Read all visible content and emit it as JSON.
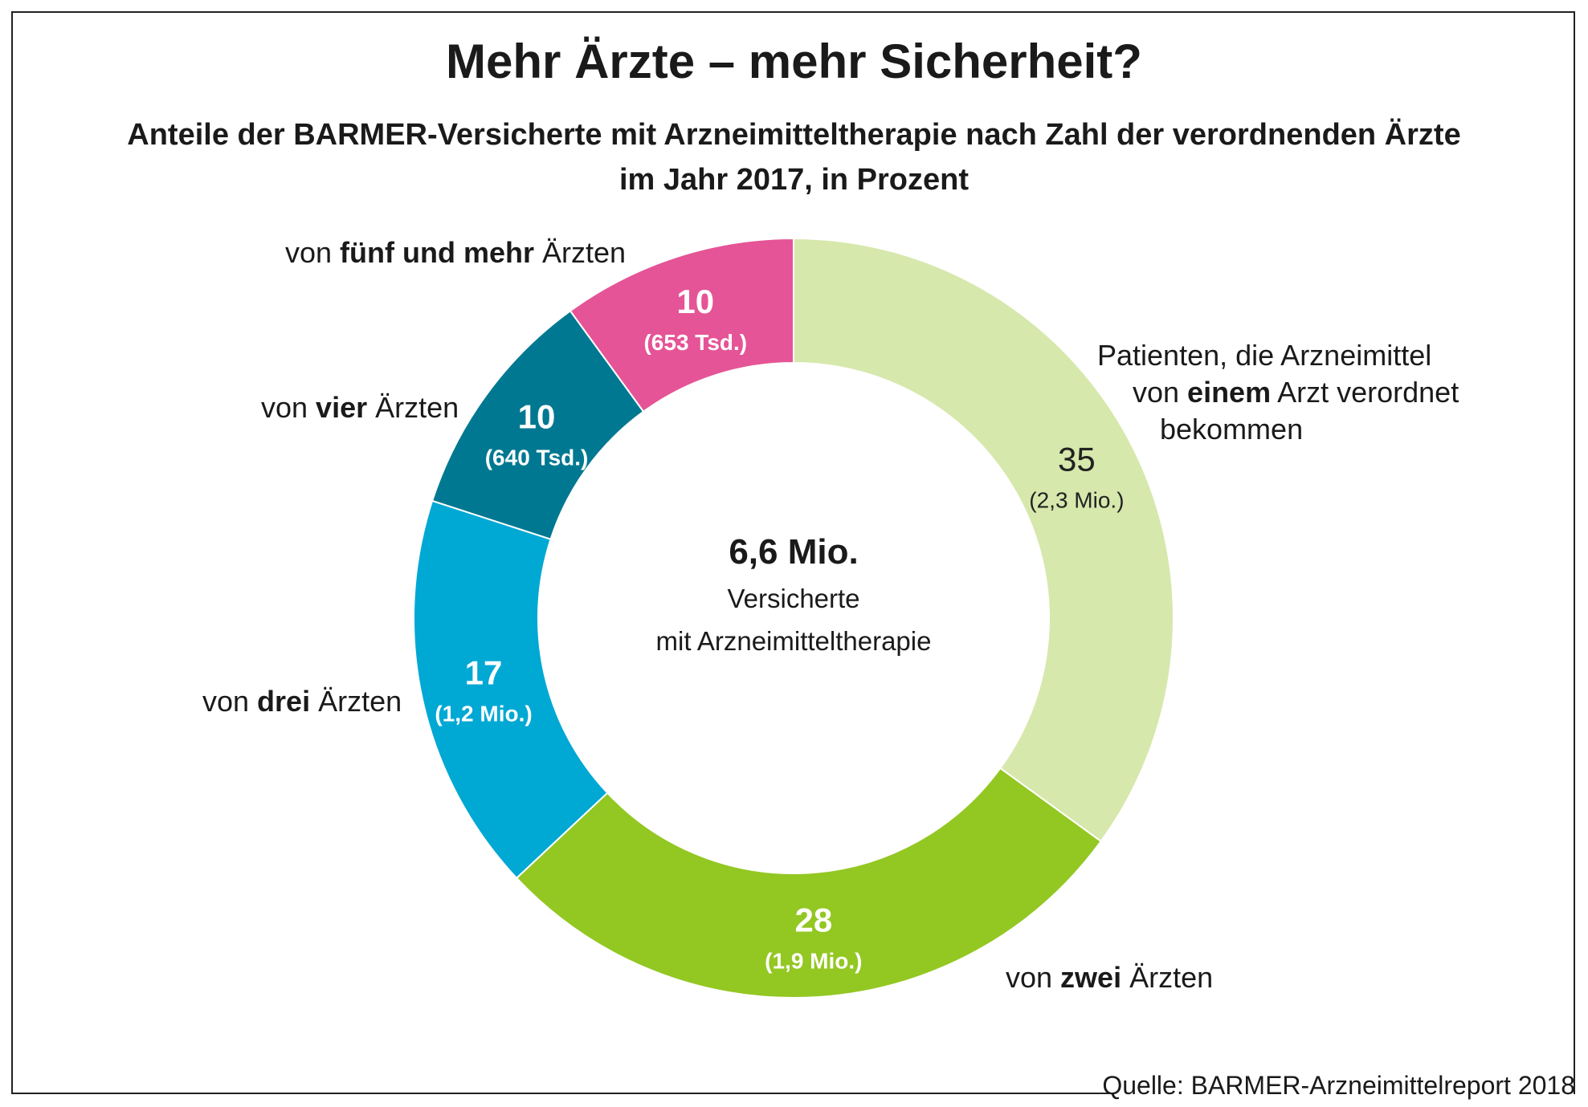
{
  "title": "Mehr Ärzte – mehr Sicherheit?",
  "subtitle_line1": "Anteile der BARMER-Versicherte mit Arzneimitteltherapie nach Zahl der verordnenden Ärzte",
  "subtitle_line2": "im Jahr 2017, in Prozent",
  "center": {
    "value": "6,6 Mio.",
    "line1": "Versicherte",
    "line2": "mit Arzneimitteltherapie"
  },
  "labels": {
    "one": {
      "line1": "Patienten, die Arzneimittel",
      "pre": "von ",
      "bold": "einem",
      "post": " Arzt verordnet",
      "line3": "bekommen"
    },
    "two": {
      "pre": "von ",
      "bold": "zwei",
      "post": " Ärzten"
    },
    "three": {
      "pre": "von ",
      "bold": "drei",
      "post": " Ärzten"
    },
    "four": {
      "pre": "von ",
      "bold": "vier",
      "post": " Ärzten"
    },
    "five": {
      "pre": "von ",
      "bold": "fünf und mehr",
      "post": " Ärzten"
    }
  },
  "source": "Quelle: BARMER-Arzneimittelreport 2018",
  "chart_data": {
    "type": "pie",
    "donut": true,
    "categories": [
      "von einem Arzt",
      "von zwei Ärzten",
      "von drei Ärzten",
      "von vier Ärzten",
      "von fünf und mehr Ärzten"
    ],
    "values": [
      35,
      28,
      17,
      10,
      10
    ],
    "value_labels": [
      "35",
      "28",
      "17",
      "10",
      "10"
    ],
    "sub_labels": [
      "(2,3 Mio.)",
      "(1,9 Mio.)",
      "(1,2 Mio.)",
      "(640 Tsd.)",
      "(653 Tsd.)"
    ],
    "colors": [
      "#d6e8ac",
      "#93c722",
      "#00a8d4",
      "#007891",
      "#e55496"
    ],
    "label_colors": [
      "#222222",
      "#ffffff",
      "#ffffff",
      "#ffffff",
      "#ffffff"
    ]
  }
}
